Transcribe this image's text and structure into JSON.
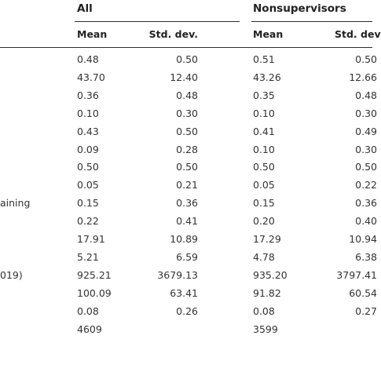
{
  "table": {
    "groups": [
      {
        "label": "All"
      },
      {
        "label": "Nonsupervisors"
      }
    ],
    "subheaders": [
      "Mean",
      "Std. dev.",
      "Mean",
      "Std. dev"
    ],
    "row_labels": [
      "",
      "",
      "",
      "",
      "",
      "",
      "",
      "",
      "aining",
      "",
      "",
      "",
      "019)",
      "",
      "",
      ""
    ],
    "rows": [
      [
        "0.48",
        "0.50",
        "0.51",
        "0.50"
      ],
      [
        "43.70",
        "12.40",
        "43.26",
        "12.66"
      ],
      [
        "0.36",
        "0.48",
        "0.35",
        "0.48"
      ],
      [
        "0.10",
        "0.30",
        "0.10",
        "0.30"
      ],
      [
        "0.43",
        "0.50",
        "0.41",
        "0.49"
      ],
      [
        "0.09",
        "0.28",
        "0.10",
        "0.30"
      ],
      [
        "0.50",
        "0.50",
        "0.50",
        "0.50"
      ],
      [
        "0.05",
        "0.21",
        "0.05",
        "0.22"
      ],
      [
        "0.15",
        "0.36",
        "0.15",
        "0.36"
      ],
      [
        "0.22",
        "0.41",
        "0.20",
        "0.40"
      ],
      [
        "17.91",
        "10.89",
        "17.29",
        "10.94"
      ],
      [
        "5.21",
        "6.59",
        "4.78",
        "6.38"
      ],
      [
        "925.21",
        "3679.13",
        "935.20",
        "3797.41"
      ],
      [
        "100.09",
        "63.41",
        "91.82",
        "60.54"
      ],
      [
        "0.08",
        "0.26",
        "0.08",
        "0.27"
      ],
      [
        "4609",
        "",
        "3599",
        ""
      ]
    ]
  }
}
